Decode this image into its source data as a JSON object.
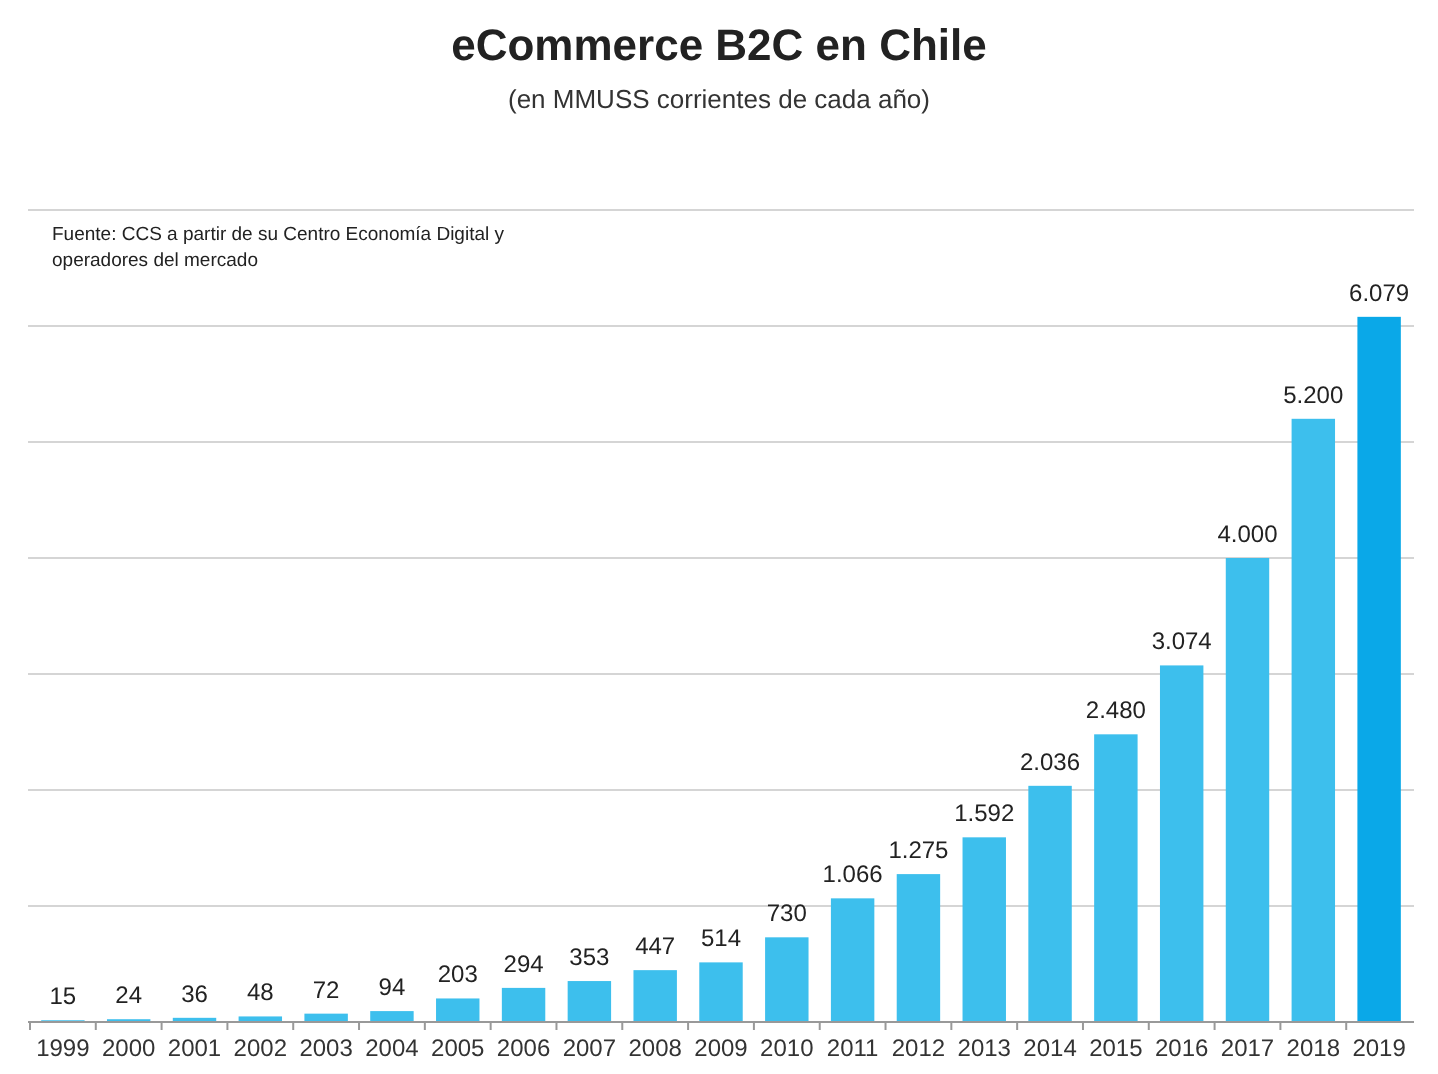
{
  "chart_data": {
    "type": "bar",
    "title": "eCommerce B2C en Chile",
    "subtitle": "(en MMUSS corrientes de cada año)",
    "annotations": [
      "Fuente: CCS a partir de su Centro Economía Digital y operadores del mercado"
    ],
    "categories": [
      "1999",
      "2000",
      "2001",
      "2002",
      "2003",
      "2004",
      "2005",
      "2006",
      "2007",
      "2008",
      "2009",
      "2010",
      "2011",
      "2012",
      "2013",
      "2014",
      "2015",
      "2016",
      "2017",
      "2018",
      "2019"
    ],
    "values": [
      15,
      24,
      36,
      48,
      72,
      94,
      203,
      294,
      353,
      447,
      514,
      730,
      1066,
      1275,
      1592,
      2036,
      2480,
      3074,
      4000,
      5200,
      6079
    ],
    "value_labels": [
      "15",
      "24",
      "36",
      "48",
      "72",
      "94",
      "203",
      "294",
      "353",
      "447",
      "514",
      "730",
      "1.066",
      "1.275",
      "1.592",
      "2.036",
      "2.480",
      "3.074",
      "4.000",
      "5.200",
      "6.079"
    ],
    "colors": [
      "#3dbfed",
      "#3dbfed",
      "#3dbfed",
      "#3dbfed",
      "#3dbfed",
      "#3dbfed",
      "#3dbfed",
      "#3dbfed",
      "#3dbfed",
      "#3dbfed",
      "#3dbfed",
      "#3dbfed",
      "#3dbfed",
      "#3dbfed",
      "#3dbfed",
      "#3dbfed",
      "#3dbfed",
      "#3dbfed",
      "#3dbfed",
      "#3dbfed",
      "#0aa8e8"
    ],
    "ylim": [
      0,
      7000
    ],
    "yticks": [
      {
        "value": 0,
        "label": null
      },
      {
        "value": 1000,
        "label": null
      },
      {
        "value": 2000,
        "label": null
      },
      {
        "value": 3000,
        "label": null
      },
      {
        "value": 4000,
        "label": null
      },
      {
        "value": 5000,
        "label": null
      },
      {
        "value": 6000,
        "label": null
      },
      {
        "value": 7000,
        "label": null
      }
    ],
    "grid": "y",
    "tick_labels": "x"
  }
}
